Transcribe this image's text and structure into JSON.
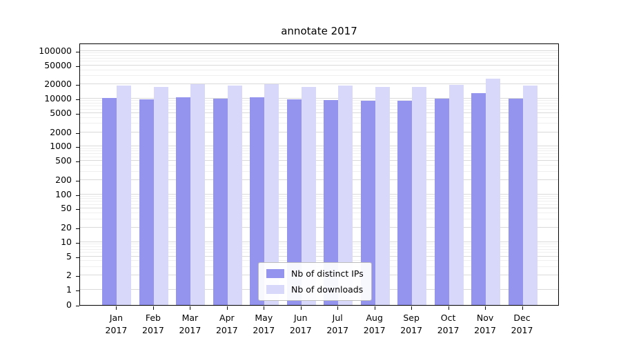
{
  "chart_data": {
    "type": "bar",
    "title": "annotate 2017",
    "yscale": "symlog",
    "ylim": [
      0,
      100000
    ],
    "grid": true,
    "legend_position": "lower center",
    "yticks": [
      0,
      1,
      2,
      5,
      10,
      20,
      50,
      100,
      200,
      500,
      1000,
      2000,
      5000,
      10000,
      20000,
      50000,
      100000
    ],
    "categories": [
      "Jan 2017",
      "Feb 2017",
      "Mar 2017",
      "Apr 2017",
      "May 2017",
      "Jun 2017",
      "Jul 2017",
      "Aug 2017",
      "Sep 2017",
      "Oct 2017",
      "Nov 2017",
      "Dec 2017"
    ],
    "series": [
      {
        "name": "Nb of distinct IPs",
        "color": "#9494ee",
        "values": [
          10500,
          9600,
          10800,
          10000,
          10800,
          9600,
          9400,
          9100,
          9100,
          10000,
          13000,
          10000
        ]
      },
      {
        "name": "Nb of downloads",
        "color": "#d8d8fa",
        "values": [
          19000,
          17500,
          20500,
          19000,
          20500,
          18000,
          19000,
          17500,
          17500,
          19500,
          26000,
          19000
        ]
      }
    ]
  }
}
